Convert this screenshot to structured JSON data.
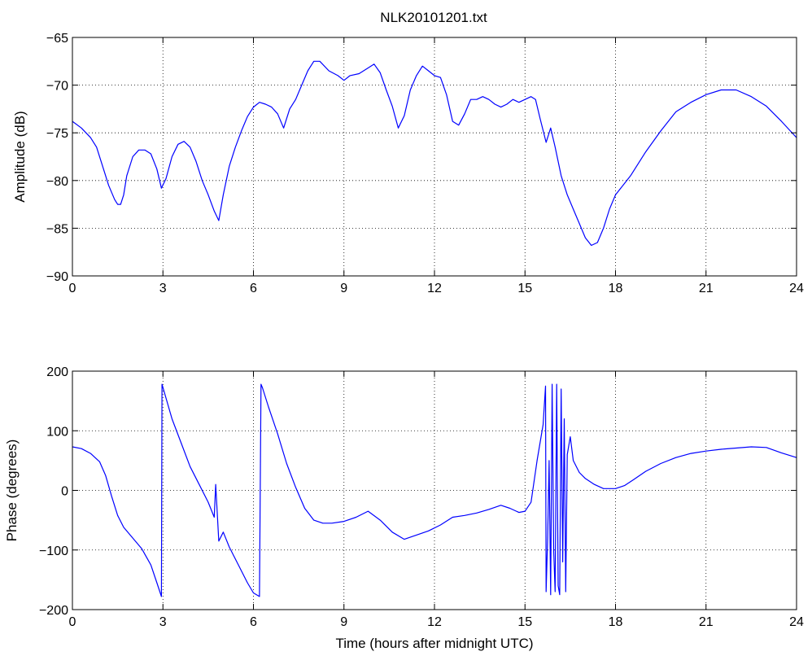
{
  "figure": {
    "title": "NLK20101201.txt",
    "background": "#ffffff",
    "line_color": "#0000ff"
  },
  "chart_data": [
    {
      "type": "line",
      "title": "NLK20101201.txt",
      "xlabel": "",
      "ylabel": "Amplitude (dB)",
      "xlim": [
        0,
        24
      ],
      "ylim": [
        -90,
        -65
      ],
      "xticks": [
        0,
        3,
        6,
        9,
        12,
        15,
        18,
        21,
        24
      ],
      "yticks": [
        -90,
        -85,
        -80,
        -75,
        -70,
        -65
      ],
      "xtick_labels": [
        "0",
        "3",
        "6",
        "9",
        "12",
        "15",
        "18",
        "21",
        "24"
      ],
      "ytick_labels": [
        "−90",
        "−85",
        "−80",
        "−75",
        "−70",
        "−65"
      ],
      "grid": true,
      "series": [
        {
          "color": "#0000ff",
          "x": [
            0,
            0.3,
            0.6,
            0.8,
            1.0,
            1.2,
            1.4,
            1.5,
            1.6,
            1.7,
            1.8,
            2.0,
            2.2,
            2.4,
            2.6,
            2.8,
            2.95,
            3.1,
            3.3,
            3.5,
            3.7,
            3.9,
            4.1,
            4.3,
            4.5,
            4.7,
            4.85,
            5.0,
            5.2,
            5.4,
            5.6,
            5.8,
            6.0,
            6.2,
            6.4,
            6.6,
            6.8,
            7.0,
            7.2,
            7.4,
            7.6,
            7.8,
            8.0,
            8.2,
            8.5,
            8.8,
            9.0,
            9.2,
            9.5,
            9.8,
            10.0,
            10.2,
            10.4,
            10.6,
            10.8,
            11.0,
            11.2,
            11.4,
            11.6,
            11.8,
            12.0,
            12.2,
            12.4,
            12.6,
            12.8,
            13.0,
            13.2,
            13.4,
            13.6,
            13.8,
            14.0,
            14.2,
            14.4,
            14.6,
            14.8,
            15.0,
            15.2,
            15.35,
            15.5,
            15.7,
            15.85,
            16.0,
            16.2,
            16.4,
            16.6,
            16.8,
            17.0,
            17.2,
            17.4,
            17.6,
            17.8,
            18.0,
            18.5,
            19.0,
            19.5,
            20.0,
            20.5,
            21.0,
            21.5,
            22.0,
            22.5,
            23.0,
            23.5,
            24.0
          ],
          "y": [
            -73.8,
            -74.5,
            -75.5,
            -76.5,
            -78.5,
            -80.5,
            -82.0,
            -82.5,
            -82.5,
            -81.5,
            -79.5,
            -77.5,
            -76.8,
            -76.8,
            -77.2,
            -78.8,
            -80.8,
            -79.8,
            -77.5,
            -76.2,
            -75.9,
            -76.5,
            -78.0,
            -80.0,
            -81.5,
            -83.2,
            -84.2,
            -81.5,
            -78.5,
            -76.5,
            -74.8,
            -73.3,
            -72.3,
            -71.8,
            -72.0,
            -72.3,
            -73.0,
            -74.5,
            -72.5,
            -71.5,
            -70.0,
            -68.5,
            -67.5,
            -67.5,
            -68.5,
            -69.0,
            -69.5,
            -69.0,
            -68.8,
            -68.2,
            -67.8,
            -68.7,
            -70.5,
            -72.2,
            -74.5,
            -73.2,
            -70.5,
            -69.0,
            -68.0,
            -68.5,
            -69.0,
            -69.2,
            -71.0,
            -73.8,
            -74.2,
            -73.0,
            -71.5,
            -71.5,
            -71.2,
            -71.5,
            -72.0,
            -72.3,
            -72.0,
            -71.5,
            -71.8,
            -71.5,
            -71.2,
            -71.5,
            -73.5,
            -76.0,
            -74.5,
            -76.5,
            -79.5,
            -81.5,
            -83.0,
            -84.5,
            -86.0,
            -86.8,
            -86.5,
            -85.0,
            -83.0,
            -81.5,
            -79.5,
            -77.0,
            -74.8,
            -72.8,
            -71.8,
            -71.0,
            -70.5,
            -70.5,
            -71.2,
            -72.2,
            -73.8,
            -75.5
          ]
        }
      ]
    },
    {
      "type": "line",
      "title": "",
      "xlabel": "Time (hours after midnight UTC)",
      "ylabel": "Phase (degrees)",
      "xlim": [
        0,
        24
      ],
      "ylim": [
        -200,
        200
      ],
      "xticks": [
        0,
        3,
        6,
        9,
        12,
        15,
        18,
        21,
        24
      ],
      "yticks": [
        -200,
        -100,
        0,
        100,
        200
      ],
      "xtick_labels": [
        "0",
        "3",
        "6",
        "9",
        "12",
        "15",
        "18",
        "21",
        "24"
      ],
      "ytick_labels": [
        "−200",
        "−100",
        "0",
        "100",
        "200"
      ],
      "grid": true,
      "series": [
        {
          "color": "#0000ff",
          "x": [
            0,
            0.3,
            0.6,
            0.9,
            1.1,
            1.3,
            1.5,
            1.7,
            2.0,
            2.3,
            2.6,
            2.8,
            2.95,
            2.97,
            3.1,
            3.3,
            3.6,
            3.9,
            4.2,
            4.5,
            4.7,
            4.75,
            4.85,
            5.0,
            5.2,
            5.5,
            5.8,
            6.0,
            6.2,
            6.25,
            6.3,
            6.5,
            6.8,
            7.1,
            7.4,
            7.7,
            8.0,
            8.3,
            8.6,
            9.0,
            9.4,
            9.8,
            10.2,
            10.6,
            11.0,
            11.4,
            11.8,
            12.2,
            12.6,
            13.0,
            13.4,
            13.8,
            14.2,
            14.5,
            14.8,
            15.0,
            15.2,
            15.4,
            15.6,
            15.68,
            15.7,
            15.75,
            15.8,
            15.85,
            15.9,
            15.95,
            16.0,
            16.05,
            16.1,
            16.15,
            16.2,
            16.25,
            16.3,
            16.35,
            16.4,
            16.5,
            16.6,
            16.8,
            17.0,
            17.3,
            17.6,
            18.0,
            18.3,
            18.6,
            19.0,
            19.5,
            20.0,
            20.5,
            21.0,
            21.5,
            22.0,
            22.5,
            23.0,
            23.5,
            24.0
          ],
          "y": [
            73,
            70,
            62,
            48,
            25,
            -10,
            -42,
            -62,
            -80,
            -98,
            -125,
            -155,
            -178,
            178,
            155,
            120,
            80,
            40,
            10,
            -20,
            -45,
            10,
            -85,
            -70,
            -95,
            -125,
            -155,
            -172,
            -178,
            178,
            172,
            140,
            95,
            45,
            5,
            -30,
            -50,
            -55,
            -55,
            -52,
            -45,
            -35,
            -50,
            -70,
            -82,
            -75,
            -68,
            -58,
            -45,
            -42,
            -38,
            -32,
            -25,
            -30,
            -37,
            -35,
            -20,
            50,
            110,
            175,
            -170,
            -80,
            50,
            -175,
            178,
            -100,
            -170,
            178,
            -160,
            -175,
            170,
            -120,
            120,
            -170,
            60,
            90,
            50,
            30,
            20,
            10,
            3,
            3,
            8,
            18,
            32,
            45,
            55,
            62,
            66,
            69,
            71,
            73,
            72,
            63,
            55
          ]
        }
      ]
    }
  ]
}
